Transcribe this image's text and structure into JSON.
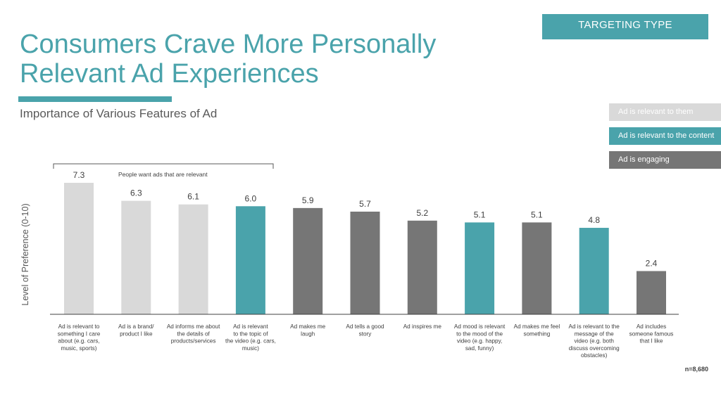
{
  "header": {
    "title_line1": "Consumers Crave More Personally",
    "title_line2": "Relevant Ad Experiences",
    "subtitle": "Importance of Various Features of Ad",
    "tag": "TARGETING TYPE"
  },
  "legend": [
    {
      "label": "Ad is relevant to them",
      "color": "#d9d9d9"
    },
    {
      "label": "Ad is relevant to the content",
      "color": "#4aa3ab"
    },
    {
      "label": "Ad is engaging",
      "color": "#767676"
    }
  ],
  "footnote": "n=8,680",
  "chart_data": {
    "type": "bar",
    "title": "Importance of Various Features of Ad",
    "ylabel": "Level of Preference (0-10)",
    "xlabel": "",
    "ylim": [
      0,
      7.3
    ],
    "grid": false,
    "legend_position": "right",
    "annotation": "People want ads that are relevant",
    "categories": [
      [
        "Ad is relevant to",
        "something I care",
        "about (e.g. cars,",
        "music, sports)"
      ],
      [
        "Ad is a brand/",
        "product I like"
      ],
      [
        "Ad informs me about",
        "the details of",
        "products/services"
      ],
      [
        "Ad is relevant",
        "to the topic of",
        "the video (e.g. cars,",
        "music)"
      ],
      [
        "Ad makes me",
        "laugh"
      ],
      [
        "Ad tells a good",
        "story"
      ],
      [
        "Ad inspires me"
      ],
      [
        "Ad mood is relevant",
        "to the mood of the",
        "video (e.g. happy,",
        "sad, funny)"
      ],
      [
        "Ad makes me feel",
        "something"
      ],
      [
        "Ad is relevant to the",
        "message of the",
        "video (e.g. both",
        "discuss overcoming",
        "obstacles)"
      ],
      [
        "Ad includes",
        "someone famous",
        "that I like"
      ]
    ],
    "values": [
      7.3,
      6.3,
      6.1,
      6.0,
      5.9,
      5.7,
      5.2,
      5.1,
      5.1,
      4.8,
      2.4
    ],
    "value_labels": [
      "7.3",
      "6.3",
      "6.1",
      "6.0",
      "5.9",
      "5.7",
      "5.2",
      "5.1",
      "5.1",
      "4.8",
      "2.4"
    ],
    "colors": [
      "#d9d9d9",
      "#d9d9d9",
      "#d9d9d9",
      "#4aa3ab",
      "#767676",
      "#767676",
      "#767676",
      "#4aa3ab",
      "#767676",
      "#4aa3ab",
      "#767676"
    ]
  }
}
